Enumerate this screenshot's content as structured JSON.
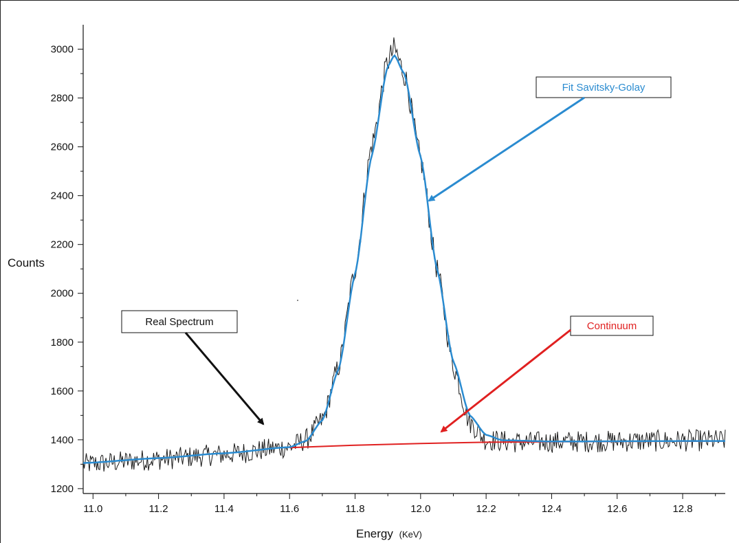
{
  "chart_data": {
    "type": "line",
    "xlabel": "Energy",
    "xlabel_unit": "(KeV)",
    "ylabel": "Counts",
    "xlim": [
      10.97,
      12.93
    ],
    "ylim": [
      1180,
      3100
    ],
    "x_ticks": [
      "11.0",
      "11.2",
      "11.4",
      "11.6",
      "11.8",
      "12.0",
      "12.2",
      "12.4",
      "12.6",
      "12.8"
    ],
    "y_ticks": [
      "1200",
      "1400",
      "1600",
      "1800",
      "2000",
      "2200",
      "2400",
      "2600",
      "2800",
      "3000"
    ],
    "grid": false,
    "series": [
      {
        "name": "Real Spectrum",
        "color": "#1a1a1a",
        "style": "noisy-line",
        "description_points": {
          "x": [
            10.97,
            11.2,
            11.4,
            11.6,
            11.65,
            11.7,
            11.75,
            11.8,
            11.85,
            11.9,
            11.92,
            11.95,
            12.0,
            12.05,
            12.1,
            12.15,
            12.2,
            12.3,
            12.5,
            12.7,
            12.93
          ],
          "y": [
            1300,
            1320,
            1340,
            1370,
            1400,
            1480,
            1700,
            2100,
            2600,
            2950,
            3000,
            2900,
            2550,
            2100,
            1700,
            1470,
            1400,
            1390,
            1393,
            1395,
            1398
          ]
        },
        "noise_amplitude": 45
      },
      {
        "name": "Fit Savitsky-Golay",
        "color": "#2a8bd0",
        "x": [
          10.97,
          11.2,
          11.4,
          11.6,
          11.65,
          11.7,
          11.75,
          11.8,
          11.85,
          11.9,
          11.92,
          11.95,
          12.0,
          12.05,
          12.1,
          12.15,
          12.2,
          12.25,
          12.4,
          12.6,
          12.8,
          12.93
        ],
        "y": [
          1305,
          1325,
          1345,
          1370,
          1395,
          1480,
          1690,
          2080,
          2560,
          2930,
          2975,
          2900,
          2560,
          2100,
          1720,
          1500,
          1420,
          1398,
          1393,
          1394,
          1395,
          1395
        ]
      },
      {
        "name": "Continuum",
        "color": "#e02020",
        "x": [
          11.6,
          11.8,
          12.0,
          12.2,
          12.4,
          12.6,
          12.8,
          12.93
        ],
        "y": [
          1368,
          1378,
          1385,
          1390,
          1392,
          1393,
          1394,
          1395
        ]
      }
    ],
    "annotations": [
      {
        "text": "Fit Savitsky-Golay",
        "color": "#2a8bd0",
        "arrow_color": "#2a8bd0",
        "target": [
          12.02,
          2350
        ]
      },
      {
        "text": "Real Spectrum",
        "color": "#111111",
        "arrow_color": "#111111",
        "target": [
          11.54,
          1450
        ]
      },
      {
        "text": "Continuum",
        "color": "#e02020",
        "arrow_color": "#e02020",
        "target": [
          12.02,
          1420
        ]
      }
    ]
  }
}
